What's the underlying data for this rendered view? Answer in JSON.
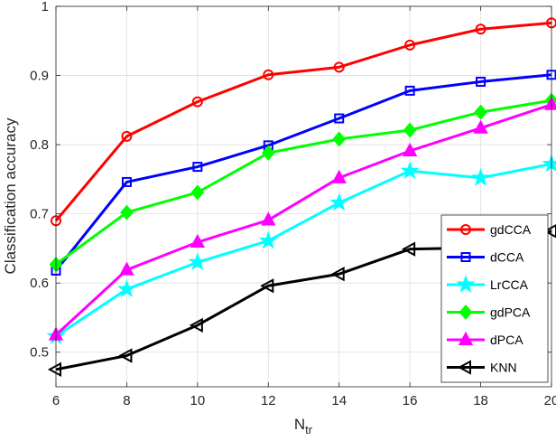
{
  "chart_data": {
    "type": "line",
    "xlabel": "N",
    "xlabel_sub": "tr",
    "ylabel": "Classification accuracy",
    "x": [
      6,
      8,
      10,
      12,
      14,
      16,
      18,
      20
    ],
    "xlim": [
      6,
      20
    ],
    "ylim": [
      0.45,
      1.0
    ],
    "xticks": [
      6,
      8,
      10,
      12,
      14,
      16,
      18,
      20
    ],
    "yticks": [
      0.5,
      0.6,
      0.7,
      0.8,
      0.9,
      1.0
    ],
    "ytick_labels": [
      "0.5",
      "0.6",
      "0.7",
      "0.8",
      "0.9",
      "1"
    ],
    "grid": true,
    "legend_position": "bottom-right",
    "series": [
      {
        "name": "gdCCA",
        "color": "#ff0000",
        "marker": "circle",
        "values": [
          0.69,
          0.812,
          0.862,
          0.901,
          0.912,
          0.944,
          0.967,
          0.976
        ]
      },
      {
        "name": "dCCA",
        "color": "#0000ff",
        "marker": "square",
        "values": [
          0.618,
          0.746,
          0.768,
          0.799,
          0.838,
          0.878,
          0.891,
          0.901
        ]
      },
      {
        "name": "LrCCA",
        "color": "#00ffff",
        "marker": "star",
        "values": [
          0.523,
          0.591,
          0.63,
          0.661,
          0.716,
          0.762,
          0.752,
          0.772
        ]
      },
      {
        "name": "gdPCA",
        "color": "#00ff00",
        "marker": "diamond",
        "values": [
          0.627,
          0.702,
          0.731,
          0.788,
          0.808,
          0.821,
          0.847,
          0.864
        ]
      },
      {
        "name": "dPCA",
        "color": "#ff00ff",
        "marker": "triangle-up",
        "values": [
          0.525,
          0.619,
          0.659,
          0.691,
          0.752,
          0.791,
          0.824,
          0.858
        ]
      },
      {
        "name": "KNN",
        "color": "#000000",
        "marker": "triangle-left",
        "values": [
          0.475,
          0.495,
          0.539,
          0.596,
          0.613,
          0.649,
          0.651,
          0.675
        ]
      }
    ]
  }
}
